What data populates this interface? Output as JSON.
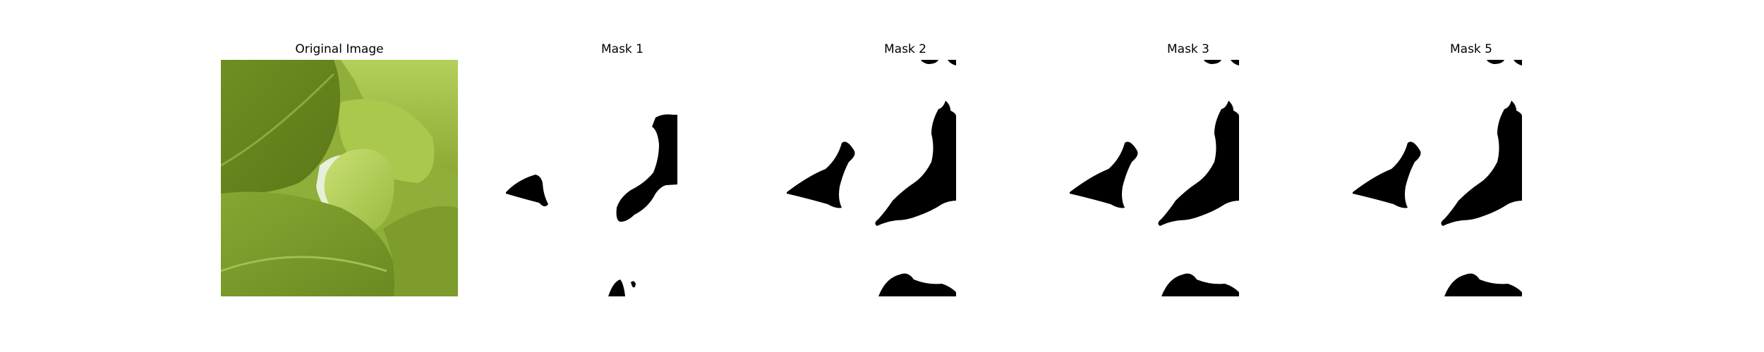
{
  "figure": {
    "panels": [
      {
        "title": "Original Image",
        "kind": "photo"
      },
      {
        "title": "Mask 1",
        "kind": "mask"
      },
      {
        "title": "Mask 2",
        "kind": "mask"
      },
      {
        "title": "Mask 3",
        "kind": "mask"
      },
      {
        "title": "Mask 5",
        "kind": "mask"
      }
    ]
  },
  "colors": {
    "background": "#ffffff",
    "mask_fill": "#000000",
    "leaf_dark": "#5d7a1c",
    "leaf_mid": "#7a9a2a",
    "leaf_light": "#a8c84e",
    "leaf_bright": "#c2dc6a",
    "gap_light": "#e7efd8"
  }
}
